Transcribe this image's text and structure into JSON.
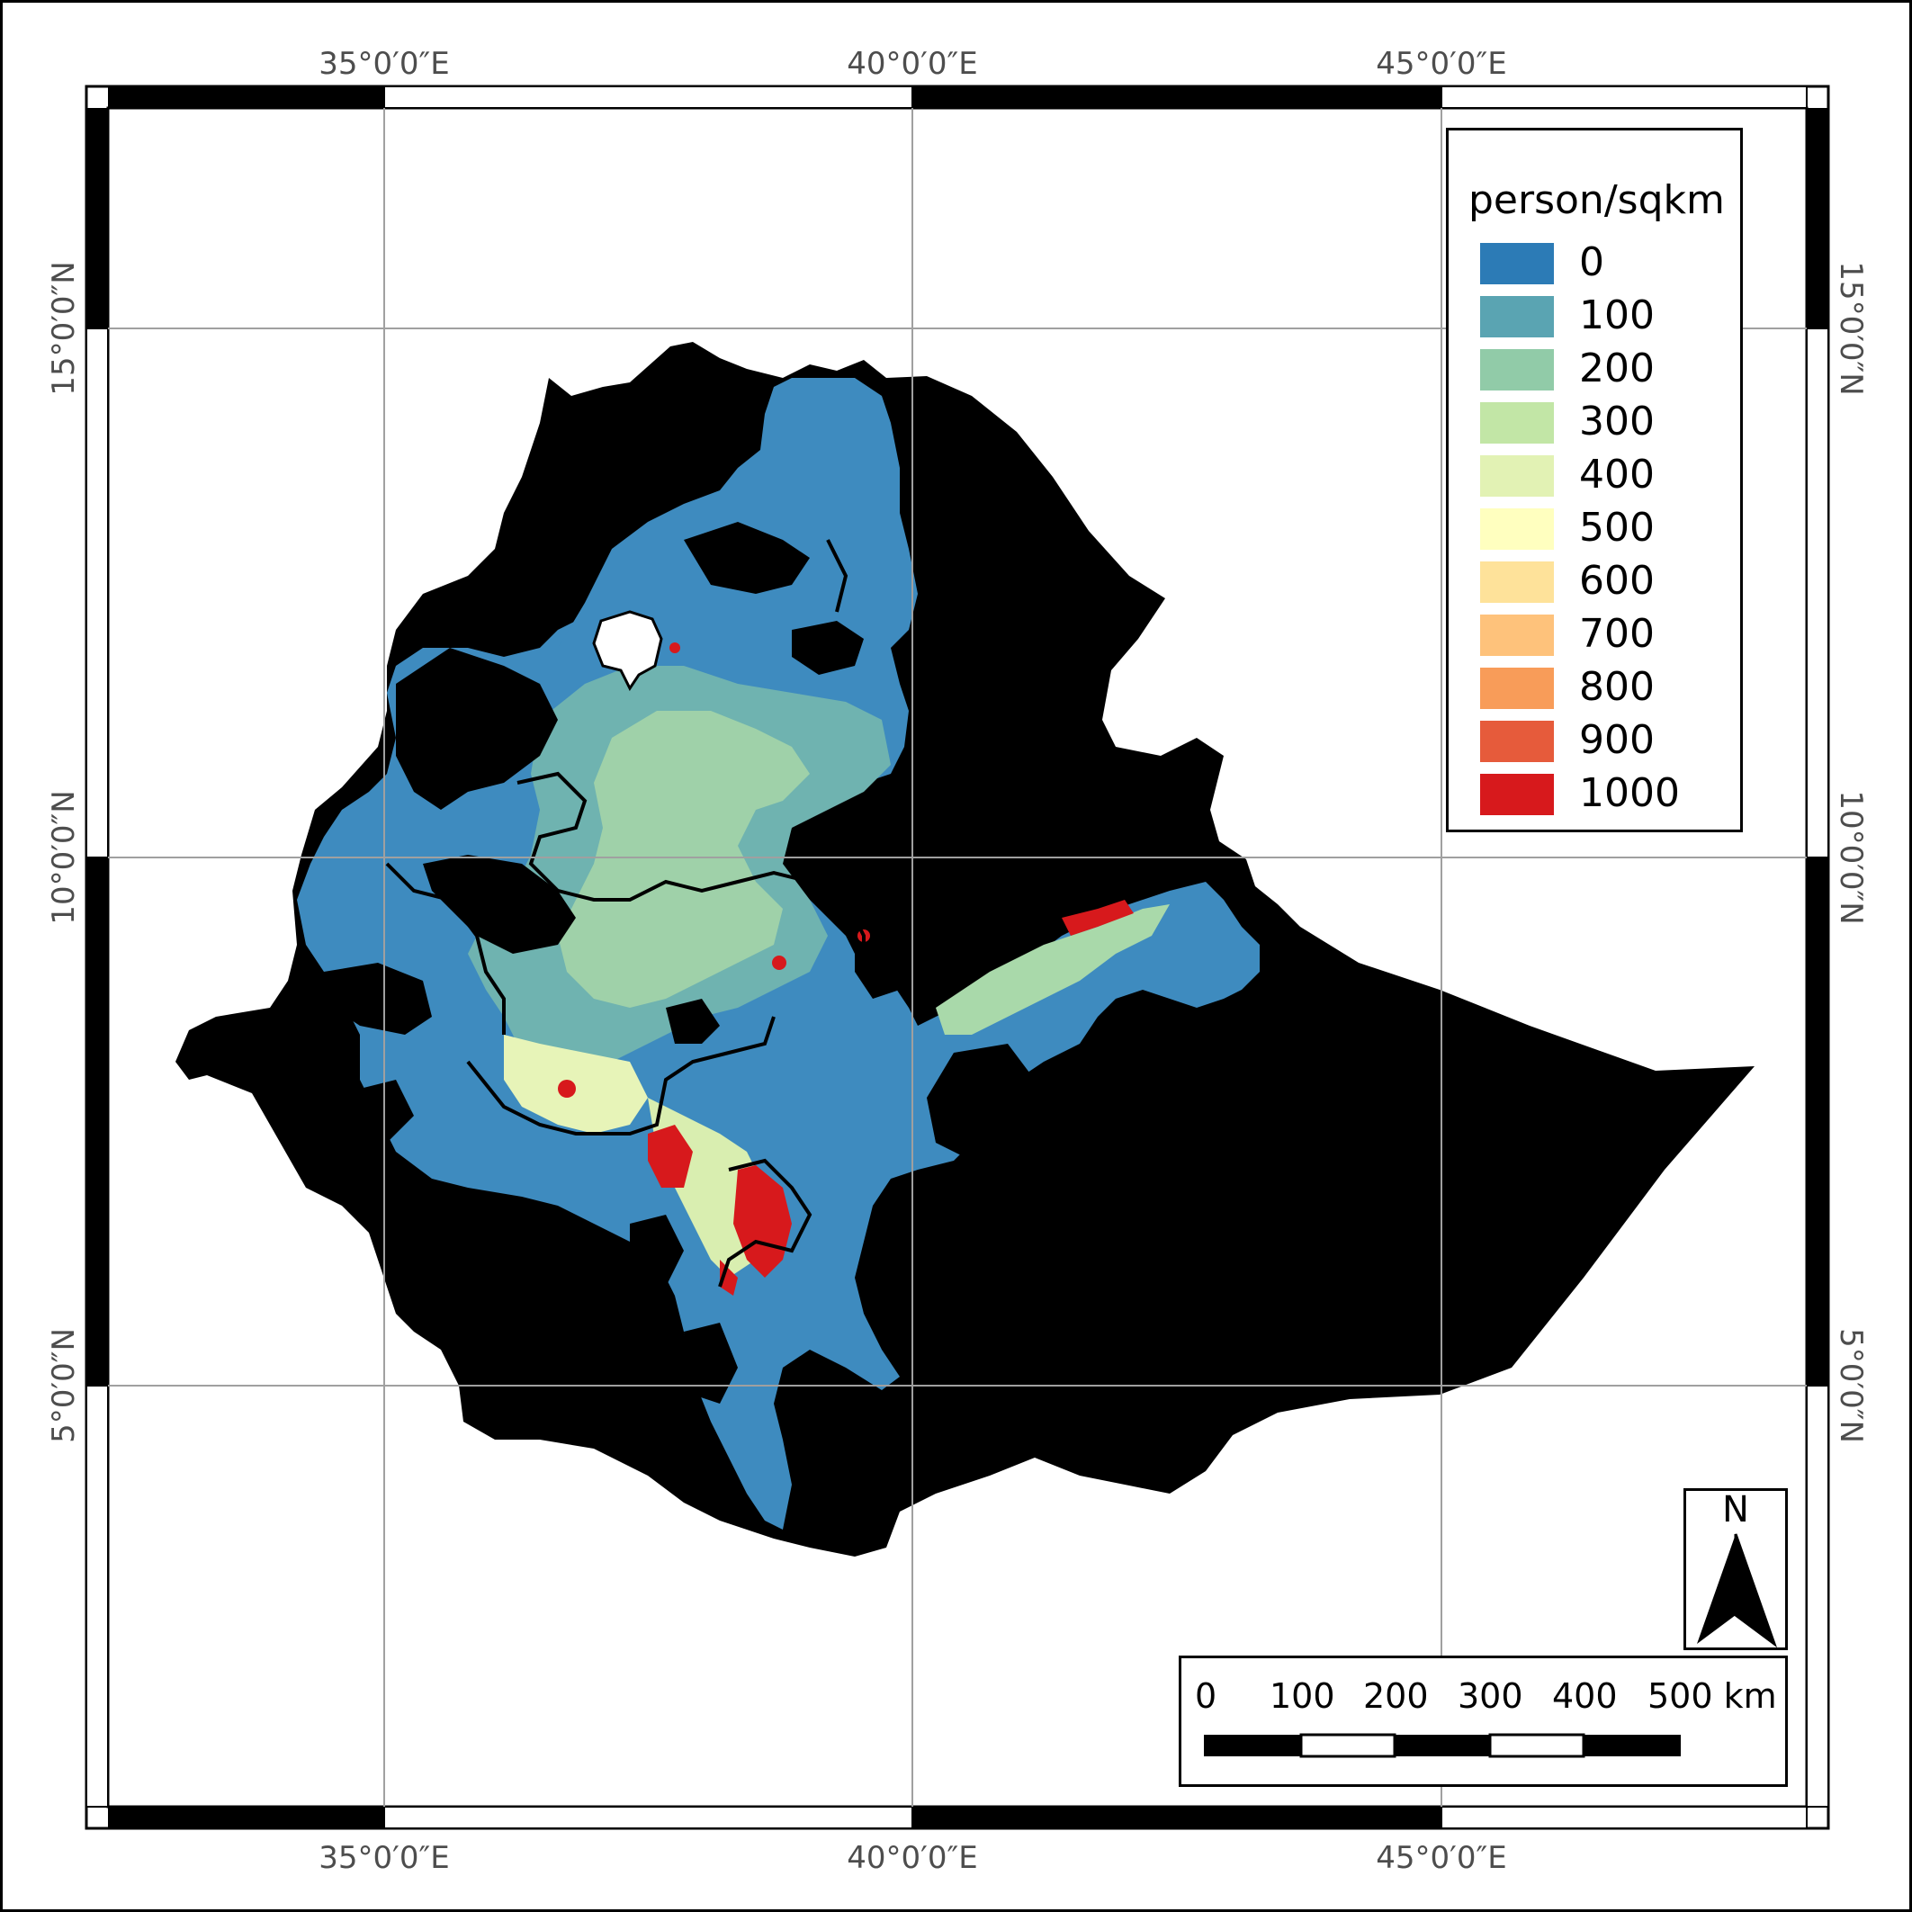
{
  "map": {
    "axis_labels": {
      "lon_top": [
        "35°0′0″E",
        "40°0′0″E",
        "45°0′0″E"
      ],
      "lon_bottom": [
        "35°0′0″E",
        "40°0′0″E",
        "45°0′0″E"
      ],
      "lat_left": [
        "15°0′0″N",
        "10°0′0″N",
        "5°0′0″N"
      ],
      "lat_right": [
        "15°0′0″N",
        "10°0′0″N",
        "5°0′0″N"
      ]
    },
    "colors": {
      "land_nodata": "#000000",
      "grid": "#a0a0a0",
      "boundary": "#000000"
    }
  },
  "legend": {
    "title": "person/sqkm",
    "items": [
      {
        "label": "0",
        "color": "#2c7bb6"
      },
      {
        "label": "100",
        "color": "#5aa4b2"
      },
      {
        "label": "200",
        "color": "#91cba8"
      },
      {
        "label": "300",
        "color": "#c2e6a6"
      },
      {
        "label": "400",
        "color": "#e2f2b4"
      },
      {
        "label": "500",
        "color": "#ffffbf"
      },
      {
        "label": "600",
        "color": "#fee29a"
      },
      {
        "label": "700",
        "color": "#fec27b"
      },
      {
        "label": "800",
        "color": "#f89c59"
      },
      {
        "label": "900",
        "color": "#e65b3b"
      },
      {
        "label": "1000",
        "color": "#d7191c"
      }
    ]
  },
  "north_arrow": {
    "label": "N"
  },
  "scale_bar": {
    "labels": [
      "0",
      "100",
      "200",
      "300",
      "400",
      "500 km"
    ]
  }
}
